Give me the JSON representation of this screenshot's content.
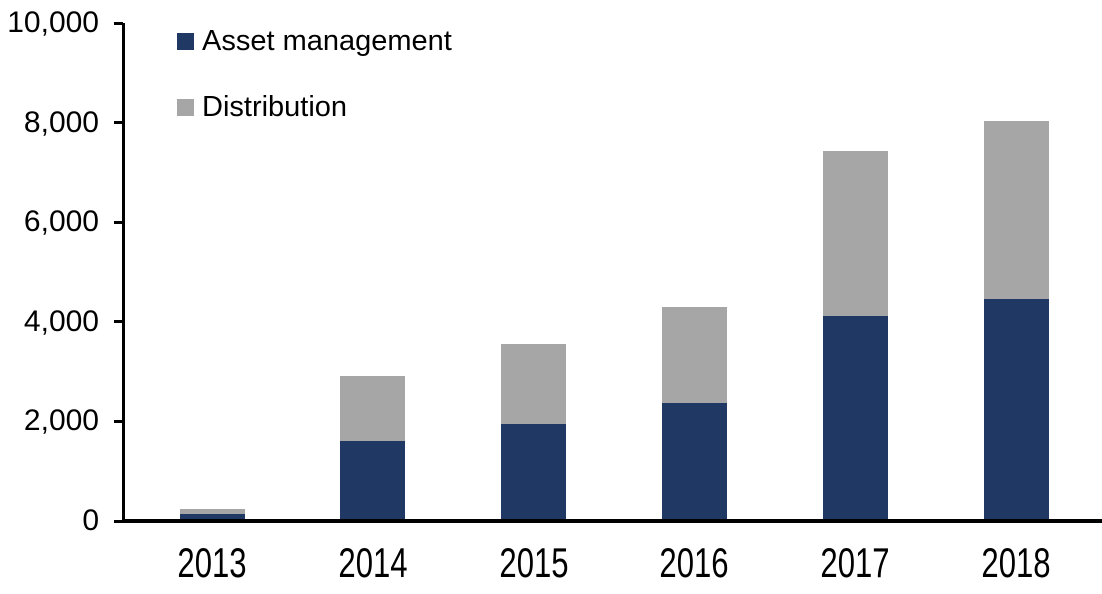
{
  "chart_data": {
    "type": "bar",
    "stacked": true,
    "title": "",
    "xlabel": "",
    "ylabel": "",
    "categories": [
      "2013",
      "2014",
      "2015",
      "2016",
      "2017",
      "2018"
    ],
    "series": [
      {
        "name": "Asset management",
        "color": "#1F3864",
        "values": [
          100,
          1570,
          1900,
          2320,
          4070,
          4420
        ]
      },
      {
        "name": "Distribution",
        "color": "#A6A6A6",
        "values": [
          110,
          1310,
          1620,
          1940,
          3310,
          3580
        ]
      }
    ],
    "totals": [
      210,
      2880,
      3520,
      4260,
      7380,
      8000
    ],
    "y_axis": {
      "tick_labels": [
        "0",
        "2,000",
        "4,000",
        "6,000",
        "8,000",
        "10,000"
      ],
      "tick_values": [
        0,
        2000,
        4000,
        6000,
        8000,
        10000
      ],
      "range": [
        0,
        10000
      ]
    },
    "legend": {
      "position": "top-left-inside",
      "entries": [
        "Asset management",
        "Distribution"
      ]
    },
    "grid": false,
    "axis_color": "#000000",
    "background_color": "#FFFFFF"
  }
}
